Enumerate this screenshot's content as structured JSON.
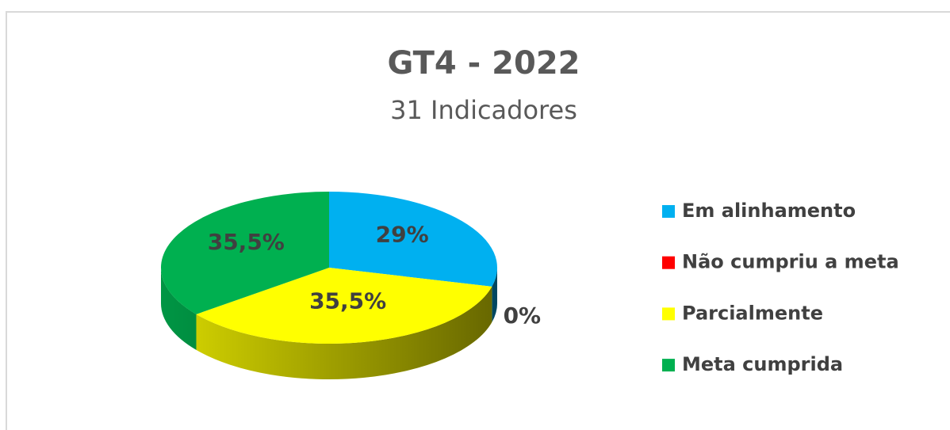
{
  "chart_data": {
    "type": "pie",
    "title": "GT4 - 2022",
    "subtitle": "31 Indicadores",
    "categories": [
      "Em alinhamento",
      "Não cumpriu a meta",
      "Parcialmente",
      "Meta cumprida"
    ],
    "values": [
      29,
      0,
      35.5,
      35.5
    ],
    "value_labels": [
      "29%",
      "0%",
      "35,5%",
      "35,5%"
    ],
    "colors": [
      "#00b0f0",
      "#ff0000",
      "#ffff00",
      "#00b050"
    ],
    "legend": "right"
  }
}
